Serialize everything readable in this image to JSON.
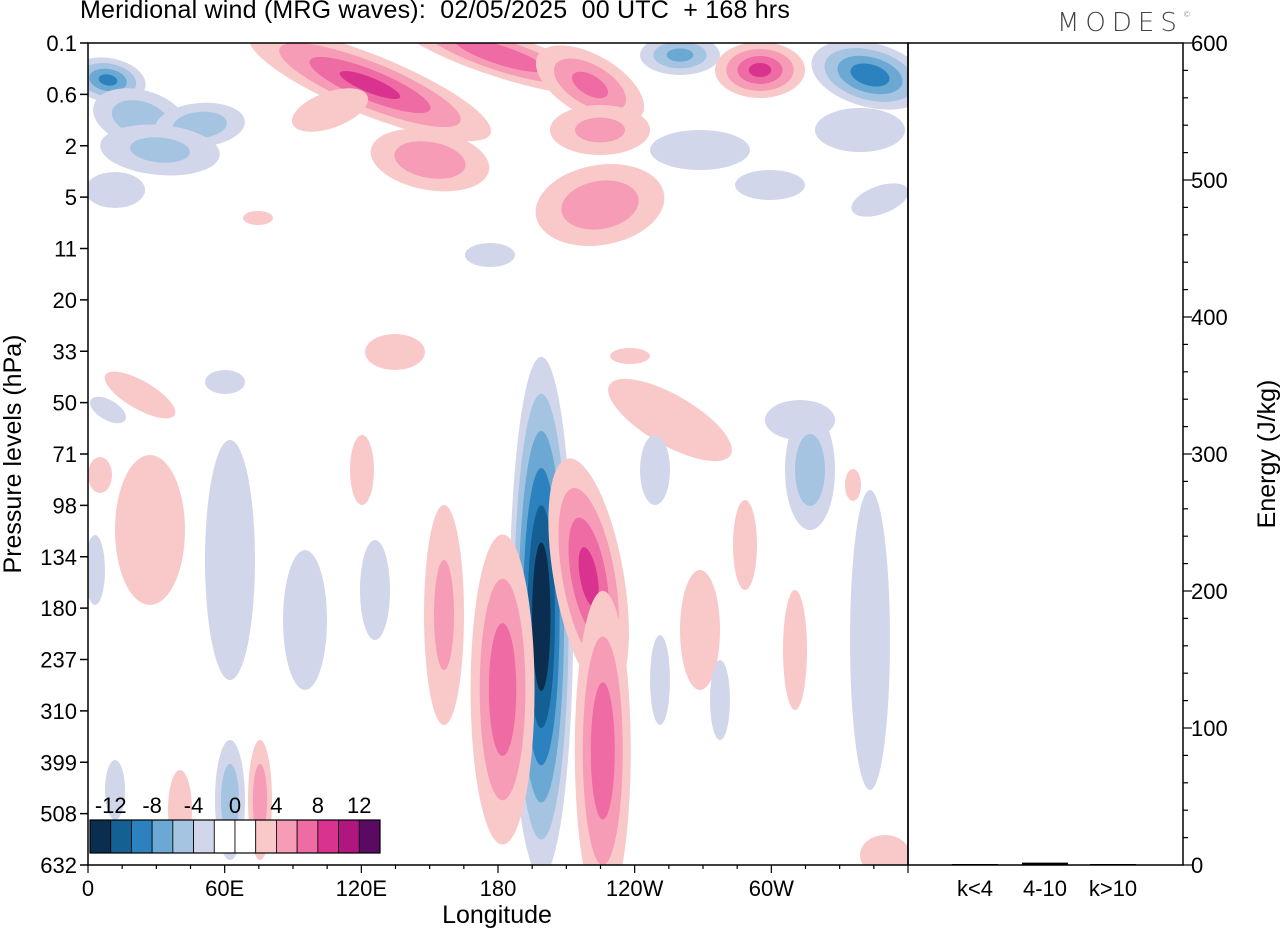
{
  "chart_data": [
    {
      "type": "heatmap",
      "title": "Meridional wind (MRG waves):  02/05/2025  00 UTC  + 168 hrs",
      "xlabel": "Longitude",
      "ylabel": "Pressure levels (hPa)",
      "x_ticks": [
        "0",
        "60E",
        "120E",
        "180",
        "120W",
        "60W"
      ],
      "x_tick_lon": [
        0,
        60,
        120,
        180,
        240,
        300
      ],
      "xlim": [
        0,
        360
      ],
      "y_ticks": [
        "0.1",
        "0.6",
        "2",
        "5",
        "11",
        "20",
        "33",
        "50",
        "71",
        "98",
        "134",
        "180",
        "237",
        "310",
        "399",
        "508",
        "632"
      ],
      "colorbar": {
        "labels": [
          "-12",
          "-8",
          "-4",
          "0",
          "4",
          "8",
          "12"
        ],
        "label_values": [
          -12,
          -8,
          -4,
          0,
          4,
          8,
          12
        ],
        "levels": [
          -14,
          -12,
          -10,
          -8,
          -6,
          -4,
          -2,
          0,
          2,
          4,
          6,
          8,
          10,
          12,
          14
        ],
        "colors": [
          "#0b2d4f",
          "#145f93",
          "#2b82bf",
          "#6ba8d3",
          "#a4c4e2",
          "#d2d6ea",
          "#ffffff",
          "#ffffff",
          "#f9c9c9",
          "#f79cb6",
          "#ee6ba3",
          "#d9338f",
          "#b01680",
          "#5a0a63"
        ]
      },
      "features": [
        {
          "lon": 199,
          "level": "134",
          "value": -14
        },
        {
          "lon": 182,
          "level": "237",
          "value": 7
        },
        {
          "lon": 222,
          "level": "134",
          "value": 8
        },
        {
          "lon": 226,
          "level": "310",
          "value": 7
        },
        {
          "lon": 130,
          "level": "0.6",
          "value": 8
        },
        {
          "lon": 295,
          "level": "0.1",
          "value": 8
        },
        {
          "lon": 348,
          "level": "0.1",
          "value": -8
        },
        {
          "lon": 5,
          "level": "0.6",
          "value": -8
        },
        {
          "lon": 210,
          "level": "5",
          "value": 5
        }
      ]
    },
    {
      "type": "bar",
      "ylabel": "Energy (J/kg)",
      "categories": [
        "k<4",
        "4-10",
        "k>10"
      ],
      "values": [
        0,
        1,
        0
      ],
      "ylim": [
        0,
        600
      ],
      "y_ticks": [
        "0",
        "100",
        "200",
        "300",
        "400",
        "500",
        "600"
      ],
      "y_tick_values": [
        0,
        100,
        200,
        300,
        400,
        500,
        600
      ]
    }
  ],
  "brand": "MODES",
  "brand_mark": "©"
}
